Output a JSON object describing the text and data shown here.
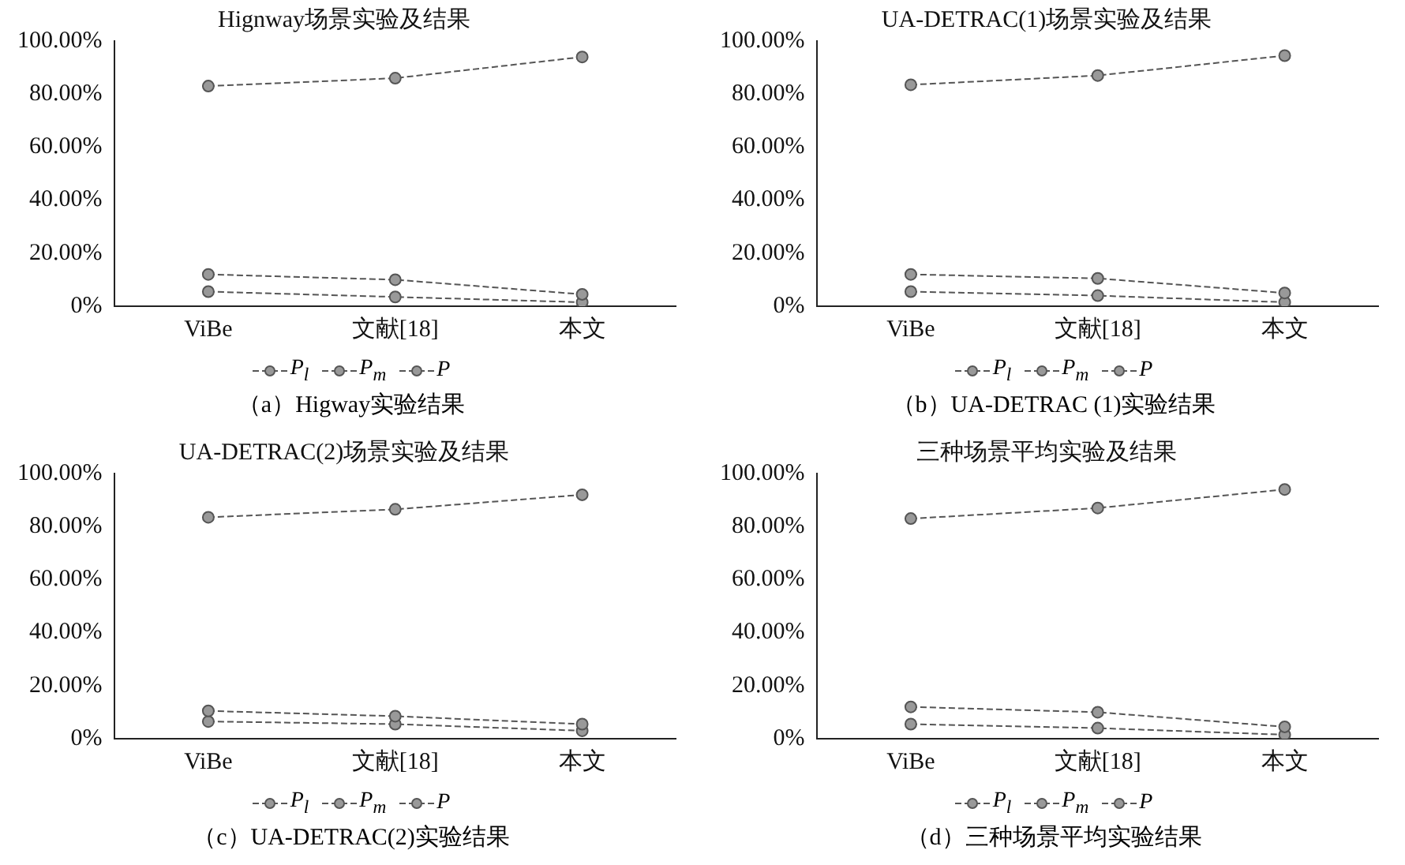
{
  "chart_data": [
    {
      "type": "line",
      "title": "Hignway场景实验及结果",
      "categories": [
        "ViBe",
        "文献[18]",
        "本文"
      ],
      "series": [
        {
          "name": "P$_{l}$",
          "color": "#555555",
          "values": [
            12,
            10,
            4.5
          ]
        },
        {
          "name": "P$_{m}$",
          "color": "#555555",
          "values": [
            5.5,
            3.5,
            1.5
          ]
        },
        {
          "name": "P",
          "color": "#555555",
          "values": [
            83,
            86,
            94
          ]
        }
      ],
      "ylim": [
        0,
        100
      ],
      "yticks": [
        {
          "value": 0,
          "label": "0%"
        },
        {
          "value": 20,
          "label": "20.00%"
        },
        {
          "value": 40,
          "label": "40.00%"
        },
        {
          "value": 60,
          "label": "60.00%"
        },
        {
          "value": 80,
          "label": "80.00%"
        },
        {
          "value": 100,
          "label": "100.00%"
        }
      ],
      "grid": false,
      "legend": "bottom",
      "marker": "circle",
      "line_style": "dashed",
      "annotations": [
        "（a）Higway实验结果"
      ]
    },
    {
      "type": "line",
      "title": "UA-DETRAC(1)场景实验及结果",
      "categories": [
        "ViBe",
        "文献[18]",
        "本文"
      ],
      "series": [
        {
          "name": "P$_{l}$",
          "color": "#555555",
          "values": [
            12,
            10.5,
            5
          ]
        },
        {
          "name": "P$_{m}$",
          "color": "#555555",
          "values": [
            5.5,
            4,
            1.5
          ]
        },
        {
          "name": "P",
          "color": "#555555",
          "values": [
            83.5,
            87,
            94.5
          ]
        }
      ],
      "ylim": [
        0,
        100
      ],
      "yticks": [
        {
          "value": 0,
          "label": "0%"
        },
        {
          "value": 20,
          "label": "20.00%"
        },
        {
          "value": 40,
          "label": "40.00%"
        },
        {
          "value": 60,
          "label": "60.00%"
        },
        {
          "value": 80,
          "label": "80.00%"
        },
        {
          "value": 100,
          "label": "100.00%"
        }
      ],
      "grid": false,
      "legend": "bottom",
      "marker": "circle",
      "line_style": "dashed",
      "annotations": [
        "（b）UA-DETRAC (1)实验结果"
      ]
    },
    {
      "type": "line",
      "title": "UA-DETRAC(2)场景实验及结果",
      "categories": [
        "ViBe",
        "文献[18]",
        "本文"
      ],
      "series": [
        {
          "name": "P$_{l}$",
          "color": "#555555",
          "values": [
            10.5,
            8.5,
            5.5
          ]
        },
        {
          "name": "P$_{m}$",
          "color": "#555555",
          "values": [
            6.5,
            5.5,
            3
          ]
        },
        {
          "name": "P",
          "color": "#555555",
          "values": [
            83.5,
            86.5,
            92
          ]
        }
      ],
      "ylim": [
        0,
        100
      ],
      "yticks": [
        {
          "value": 0,
          "label": "0%"
        },
        {
          "value": 20,
          "label": "20.00%"
        },
        {
          "value": 40,
          "label": "40.00%"
        },
        {
          "value": 60,
          "label": "60.00%"
        },
        {
          "value": 80,
          "label": "80.00%"
        },
        {
          "value": 100,
          "label": "100.00%"
        }
      ],
      "grid": false,
      "legend": "bottom",
      "marker": "circle",
      "line_style": "dashed",
      "annotations": [
        "（c）UA-DETRAC(2)实验结果"
      ]
    },
    {
      "type": "line",
      "title": "三种场景平均实验及结果",
      "categories": [
        "ViBe",
        "文献[18]",
        "本文"
      ],
      "series": [
        {
          "name": "P$_{l}$",
          "color": "#555555",
          "values": [
            12,
            10,
            4.5
          ]
        },
        {
          "name": "P$_{m}$",
          "color": "#555555",
          "values": [
            5.5,
            4,
            1.5
          ]
        },
        {
          "name": "P",
          "color": "#555555",
          "values": [
            83,
            87,
            94
          ]
        }
      ],
      "ylim": [
        0,
        100
      ],
      "yticks": [
        {
          "value": 0,
          "label": "0%"
        },
        {
          "value": 20,
          "label": "20.00%"
        },
        {
          "value": 40,
          "label": "40.00%"
        },
        {
          "value": 60,
          "label": "60.00%"
        },
        {
          "value": 80,
          "label": "80.00%"
        },
        {
          "value": 100,
          "label": "100.00%"
        }
      ],
      "grid": false,
      "legend": "bottom",
      "marker": "circle",
      "line_style": "dashed",
      "annotations": [
        "（d）三种场景平均实验结果"
      ]
    }
  ]
}
